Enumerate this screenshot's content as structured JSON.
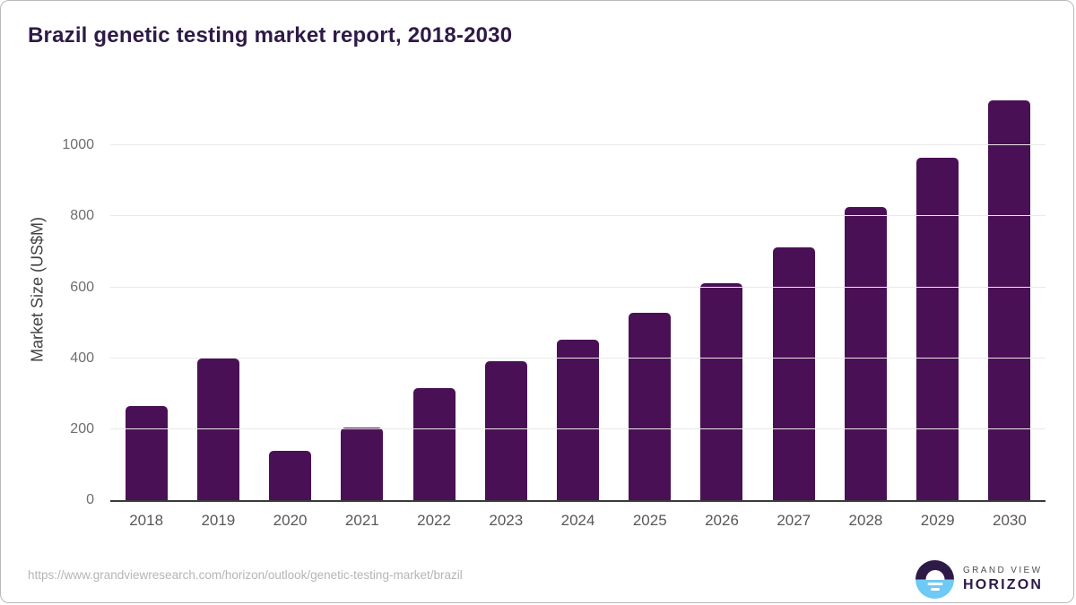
{
  "title": "Brazil genetic testing market report, 2018-2030",
  "chart_data": {
    "type": "bar",
    "title": "Brazil genetic testing market report, 2018-2030",
    "categories": [
      "2018",
      "2019",
      "2020",
      "2021",
      "2022",
      "2023",
      "2024",
      "2025",
      "2026",
      "2027",
      "2028",
      "2029",
      "2030"
    ],
    "values": [
      265,
      399,
      139,
      205,
      315,
      391,
      452,
      527,
      612,
      712,
      827,
      966,
      1128
    ],
    "xlabel": "",
    "ylabel": "Market Size (US$M)",
    "ylim": [
      0,
      1160
    ],
    "yticks": [
      0,
      200,
      400,
      600,
      800,
      1000
    ],
    "grid": "horizontal",
    "legend": "none",
    "bar_color": "#4a1055"
  },
  "colors": {
    "title": "#2e1a47",
    "bar": "#4a1055",
    "gridline": "#e9e9e9",
    "axis_line": "#3a3a3a",
    "tick_label": "#6e6e6e",
    "x_label": "#585858",
    "url_text": "#b5b5b5",
    "logo_dark": "#2e1a47",
    "logo_blue": "#6ec9f4"
  },
  "footer": {
    "source_url": "https://www.grandviewresearch.com/horizon/outlook/genetic-testing-market/brazil",
    "logo": {
      "top": "GRAND VIEW",
      "bottom": "HORIZON"
    }
  }
}
